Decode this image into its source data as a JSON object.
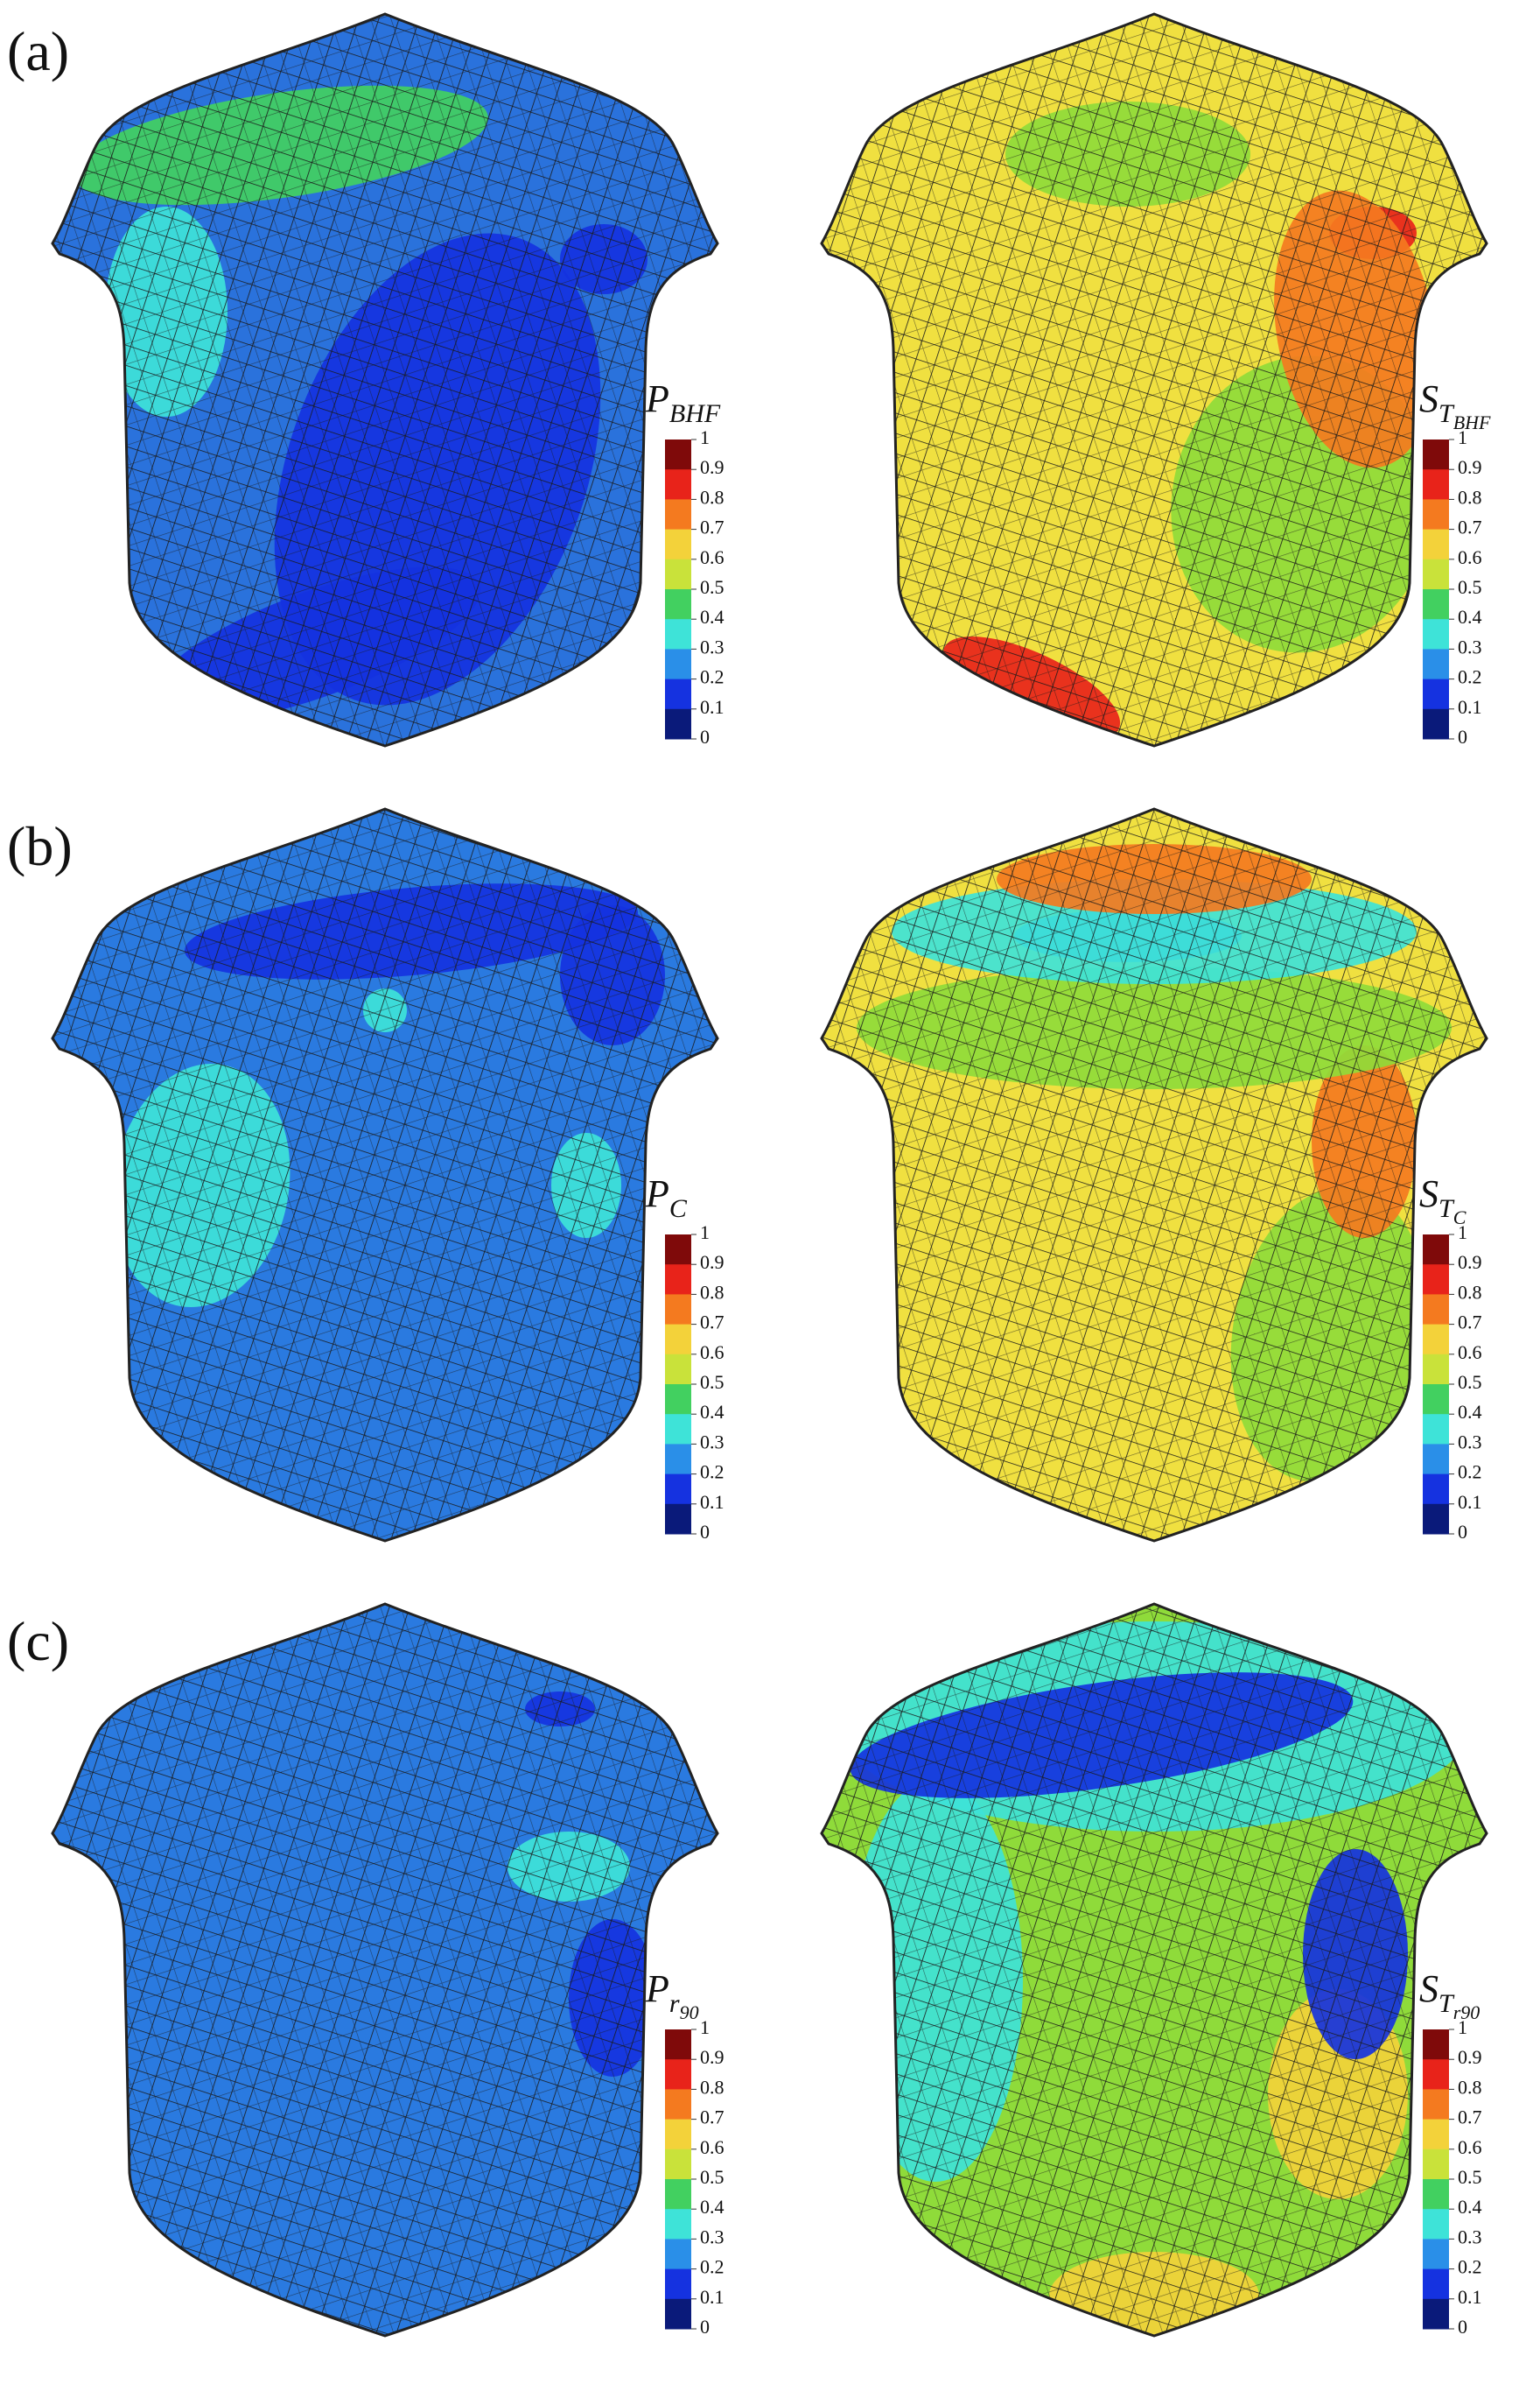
{
  "figure": {
    "colorbar": {
      "ticks": [
        1,
        0.9,
        0.8,
        0.7,
        0.6,
        0.5,
        0.4,
        0.3,
        0.2,
        0.1,
        0
      ],
      "colors": [
        "#7f0a0a",
        "#e8231a",
        "#f47a1f",
        "#f3d23a",
        "#c9e23a",
        "#42d060",
        "#3ee3d8",
        "#2a8fe8",
        "#1532e0",
        "#0a1a7a"
      ]
    },
    "panels": [
      {
        "label": "(a)",
        "plots": [
          {
            "symbol": "P",
            "subscript": "BHF",
            "fill": "#2a72dc"
          },
          {
            "symbol": "S",
            "subscript": "T",
            "subsubscript": "BHF",
            "fill": "#f0e040"
          }
        ]
      },
      {
        "label": "(b)",
        "plots": [
          {
            "symbol": "P",
            "subscript": "C",
            "fill": "#2a7ae0"
          },
          {
            "symbol": "S",
            "subscript": "T",
            "subsubscript": "C",
            "fill": "#f0e040"
          }
        ]
      },
      {
        "label": "(c)",
        "plots": [
          {
            "symbol": "P",
            "subscript": "r",
            "subsubscript": "90",
            "fill": "#2a7ae0"
          },
          {
            "symbol": "S",
            "subscript": "T",
            "subsubscript": "r90",
            "fill": "#8fdb3a"
          }
        ]
      }
    ]
  }
}
